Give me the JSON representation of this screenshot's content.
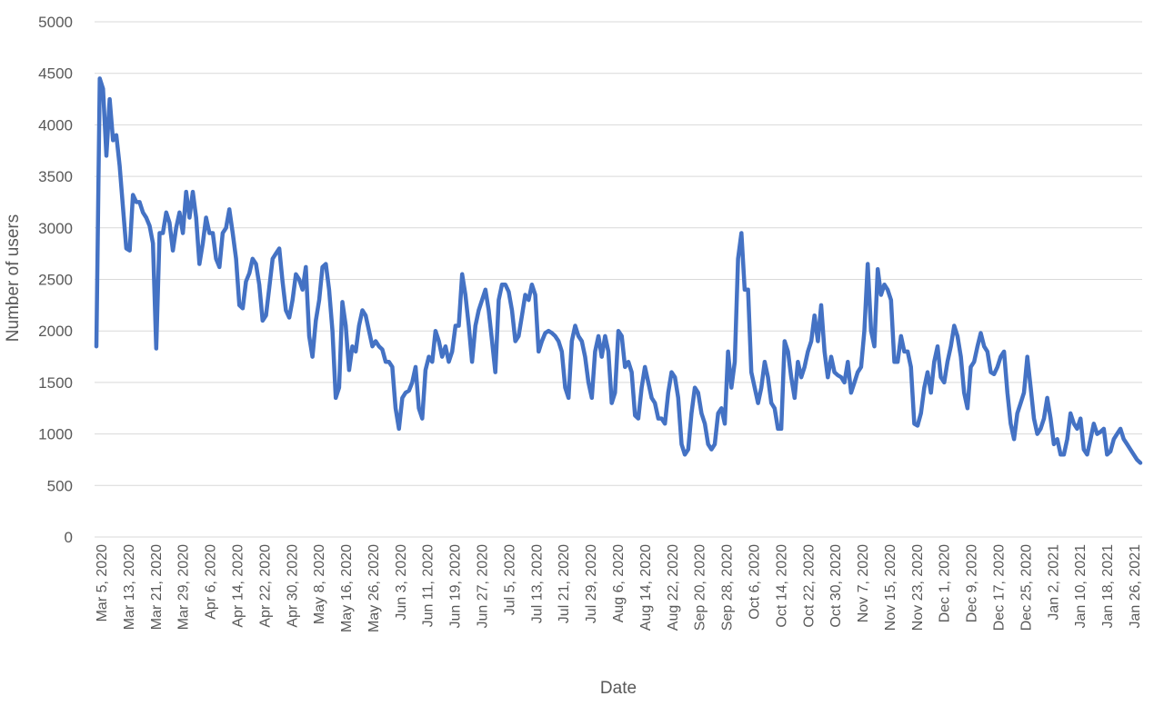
{
  "chart_data": {
    "type": "line",
    "title": "",
    "xlabel": "Date",
    "ylabel": "Number of users",
    "ylim": [
      0,
      5000
    ],
    "yticks": [
      0,
      500,
      1000,
      1500,
      2000,
      2500,
      3000,
      3500,
      4000,
      4500,
      5000
    ],
    "grid": "horizontal",
    "legend": "none",
    "line_color": "#4472c4",
    "x_tick_labels": [
      "Mar 5, 2020",
      "Mar 13, 2020",
      "Mar 21, 2020",
      "Mar 29, 2020",
      "Apr 6, 2020",
      "Apr 14, 2020",
      "Apr 22, 2020",
      "Apr 30, 2020",
      "May 8, 2020",
      "May 16, 2020",
      "May 26, 2020",
      "Jun 3, 2020",
      "Jun 11, 2020",
      "Jun 19, 2020",
      "Jun 27, 2020",
      "Jul 5, 2020",
      "Jul 13, 2020",
      "Jul 21, 2020",
      "Jul 29, 2020",
      "Aug 6, 2020",
      "Aug 14, 2020",
      "Aug 22, 2020",
      "Sep 20, 2020",
      "Sep 28, 2020",
      "Oct 6, 2020",
      "Oct 14, 2020",
      "Oct 22, 2020",
      "Oct 30, 2020",
      "Nov 7, 2020",
      "Nov 15, 2020",
      "Nov 23, 2020",
      "Dec 1, 2020",
      "Dec 9, 2020",
      "Dec 17, 2020",
      "Dec 25, 2020",
      "Jan 2, 2021",
      "Jan 10, 2021",
      "Jan 18, 2021",
      "Jan 26, 2021"
    ],
    "series": [
      {
        "values": [
          1850,
          4450,
          4350,
          3700,
          4250,
          3850,
          3900,
          3600,
          3200,
          2800,
          2780,
          3320,
          3250,
          3250,
          3150,
          3100,
          3020,
          2850,
          1830,
          2950,
          2950,
          3150,
          3050,
          2780,
          3000,
          3150,
          2950,
          3350,
          3100,
          3350,
          3100,
          2650,
          2850,
          3100,
          2950,
          2950,
          2700,
          2620,
          2950,
          3000,
          3180,
          2950,
          2700,
          2250,
          2220,
          2480,
          2560,
          2700,
          2650,
          2450,
          2100,
          2150,
          2420,
          2700,
          2750,
          2800,
          2480,
          2200,
          2130,
          2300,
          2550,
          2500,
          2400,
          2620,
          1950,
          1750,
          2100,
          2300,
          2620,
          2650,
          2400,
          2000,
          1350,
          1450,
          2280,
          2050,
          1620,
          1850,
          1800,
          2050,
          2200,
          2150,
          2000,
          1850,
          1900,
          1850,
          1820,
          1700,
          1700,
          1650,
          1250,
          1050,
          1350,
          1400,
          1420,
          1500,
          1650,
          1250,
          1150,
          1620,
          1750,
          1700,
          2000,
          1900,
          1750,
          1850,
          1700,
          1800,
          2050,
          2050,
          2550,
          2350,
          2050,
          1700,
          2050,
          2200,
          2300,
          2400,
          2200,
          1900,
          1600,
          2300,
          2450,
          2450,
          2380,
          2200,
          1900,
          1950,
          2150,
          2350,
          2300,
          2450,
          2350,
          1800,
          1900,
          1980,
          2000,
          1980,
          1950,
          1900,
          1800,
          1450,
          1350,
          1900,
          2050,
          1950,
          1900,
          1750,
          1500,
          1350,
          1800,
          1950,
          1750,
          1950,
          1800,
          1300,
          1400,
          2000,
          1950,
          1650,
          1700,
          1600,
          1180,
          1150,
          1450,
          1650,
          1500,
          1350,
          1300,
          1150,
          1150,
          1100,
          1400,
          1600,
          1550,
          1350,
          900,
          800,
          850,
          1200,
          1450,
          1400,
          1200,
          1100,
          900,
          850,
          900,
          1200,
          1250,
          1100,
          1800,
          1450,
          1700,
          2700,
          2950,
          2400,
          2400,
          1600,
          1450,
          1300,
          1450,
          1700,
          1550,
          1300,
          1250,
          1050,
          1050,
          1900,
          1800,
          1550,
          1350,
          1700,
          1550,
          1650,
          1800,
          1900,
          2150,
          1900,
          2250,
          1800,
          1550,
          1750,
          1600,
          1570,
          1550,
          1500,
          1700,
          1400,
          1500,
          1600,
          1650,
          2000,
          2650,
          2000,
          1850,
          2600,
          2350,
          2450,
          2400,
          2300,
          1700,
          1700,
          1950,
          1800,
          1800,
          1650,
          1100,
          1080,
          1200,
          1450,
          1600,
          1400,
          1700,
          1850,
          1550,
          1500,
          1700,
          1850,
          2050,
          1950,
          1750,
          1400,
          1250,
          1650,
          1700,
          1850,
          1980,
          1850,
          1800,
          1600,
          1580,
          1650,
          1750,
          1800,
          1400,
          1100,
          950,
          1200,
          1300,
          1400,
          1750,
          1450,
          1150,
          1000,
          1050,
          1150,
          1350,
          1150,
          900,
          950,
          800,
          800,
          950,
          1200,
          1100,
          1050,
          1150,
          850,
          800,
          950,
          1100,
          1000,
          1020,
          1050,
          800,
          830,
          950,
          1000,
          1050,
          950,
          900,
          850,
          800,
          750,
          720
        ]
      }
    ]
  }
}
